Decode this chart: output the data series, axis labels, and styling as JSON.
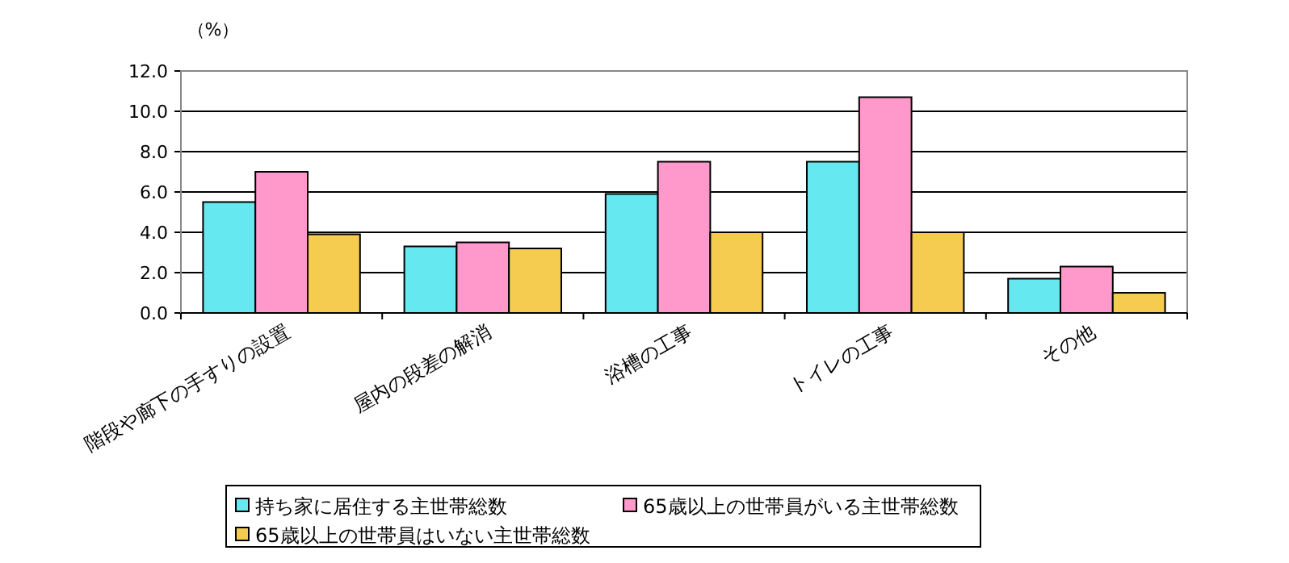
{
  "chart_data": {
    "type": "bar",
    "ylabel": "（%）",
    "categories": [
      "階段や廊下の手すりの設置",
      "屋内の段差の解消",
      "浴槽の工事",
      "トイレの工事",
      "その他"
    ],
    "series": [
      {
        "name": "持ち家に居住する主世帯総数",
        "color": "#66e8f0",
        "values": [
          5.5,
          3.3,
          5.9,
          7.5,
          1.7
        ]
      },
      {
        "name": "65歳以上の世帯員がいる主世帯総数",
        "color": "#ff99cc",
        "values": [
          7.0,
          3.5,
          7.5,
          10.7,
          2.3
        ]
      },
      {
        "name": "65歳以上の世帯員はいない主世帯総数",
        "color": "#f5cc50",
        "values": [
          3.9,
          3.2,
          4.0,
          4.0,
          1.0
        ]
      }
    ],
    "ylim": [
      0,
      12
    ],
    "yticks": [
      {
        "value": 0,
        "label": "0.0"
      },
      {
        "value": 2,
        "label": "2.0"
      },
      {
        "value": 4,
        "label": "4.0"
      },
      {
        "value": 6,
        "label": "6.0"
      },
      {
        "value": 8,
        "label": "8.0"
      },
      {
        "value": 10,
        "label": "10.0"
      },
      {
        "value": 12,
        "label": "12.0"
      }
    ],
    "grid": "y",
    "legend": "bottom"
  }
}
